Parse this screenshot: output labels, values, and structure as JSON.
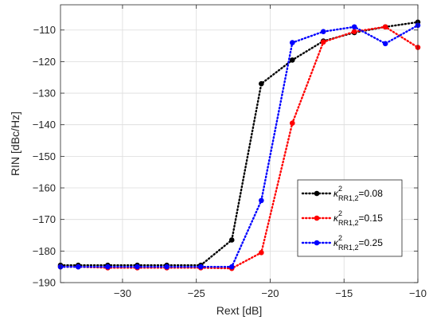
{
  "chart_data": {
    "type": "line",
    "title": "",
    "xlabel": "Rext [dB]",
    "ylabel": "RIN [dBc/Hz]",
    "xlim": [
      -34.2,
      -10
    ],
    "ylim": [
      -190,
      -102
    ],
    "xticks": [
      -30,
      -25,
      -20,
      -15,
      -10
    ],
    "yticks": [
      -110,
      -120,
      -130,
      -140,
      -150,
      -160,
      -170,
      -180,
      -190
    ],
    "grid": true,
    "legend_position": "bottom-right",
    "series": [
      {
        "name_symbol": "κ",
        "name_superscript": "2",
        "name_subscript": "RR1,2",
        "name_value": "=0.08",
        "color": "#000000",
        "style": "dotted-marker",
        "x": [
          -34.2,
          -33,
          -31,
          -29,
          -27,
          -24.7,
          -22.6,
          -20.6,
          -18.5,
          -16.4,
          -14.3,
          -12.2,
          -10
        ],
        "y": [
          -184.5,
          -184.5,
          -184.5,
          -184.5,
          -184.5,
          -184.5,
          -176.5,
          -127,
          -119.5,
          -113.5,
          -110.8,
          -109,
          -107.5
        ]
      },
      {
        "name_symbol": "κ",
        "name_superscript": "2",
        "name_subscript": "RR1,2",
        "name_value": "=0.15",
        "color": "#ff0000",
        "style": "dotted-marker",
        "x": [
          -34.2,
          -33,
          -31,
          -29,
          -27,
          -24.7,
          -22.6,
          -20.6,
          -18.5,
          -16.4,
          -14.3,
          -12.2,
          -10
        ],
        "y": [
          -185,
          -185,
          -185.3,
          -185.3,
          -185.3,
          -185.3,
          -185.5,
          -180.5,
          -139.5,
          -113.8,
          -110.5,
          -109,
          -115.5
        ]
      },
      {
        "name_symbol": "κ",
        "name_superscript": "2",
        "name_subscript": "RR1,2",
        "name_value": "=0.25",
        "color": "#0000ff",
        "style": "dotted-marker",
        "x": [
          -34.2,
          -33,
          -31,
          -29,
          -27,
          -24.7,
          -22.6,
          -20.6,
          -18.5,
          -16.4,
          -14.3,
          -12.2,
          -10
        ],
        "y": [
          -185,
          -185,
          -185,
          -185,
          -185,
          -185,
          -185,
          -164,
          -114,
          -110.5,
          -109,
          -114.3,
          -108.5
        ]
      }
    ]
  }
}
